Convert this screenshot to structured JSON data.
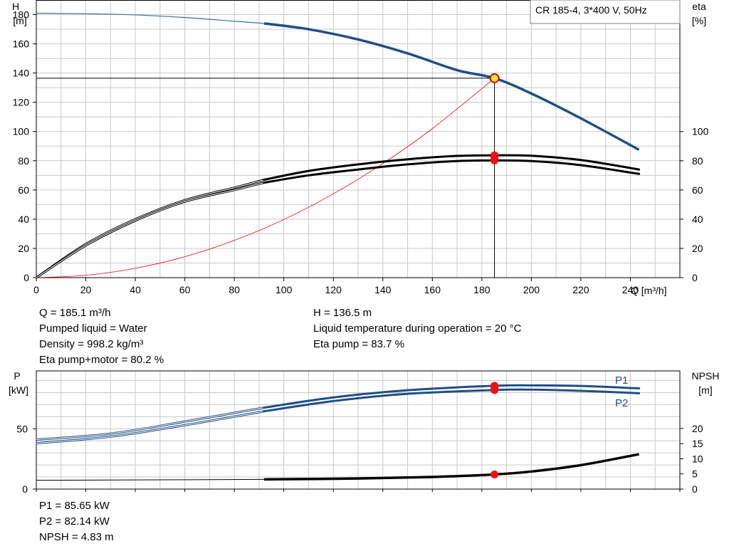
{
  "chart_data": [
    {
      "type": "line",
      "legend_box": "CR 185-4, 3*400 V, 50Hz",
      "x_axis": {
        "label": "Q [m³/h]",
        "range": [
          0,
          260
        ],
        "ticks": [
          0,
          20,
          40,
          60,
          80,
          100,
          120,
          140,
          160,
          180,
          200,
          220,
          240
        ]
      },
      "left_axis": {
        "label_line1": "H",
        "label_line2": "[m]",
        "range": [
          0,
          190
        ],
        "ticks": [
          0,
          20,
          40,
          60,
          80,
          100,
          120,
          140,
          160,
          180
        ]
      },
      "right_axis": {
        "label_line1": "eta",
        "label_line2": "[%]",
        "range": [
          0,
          190
        ],
        "ticks": [
          0,
          20,
          40,
          60,
          80,
          100
        ]
      },
      "grid": true,
      "duty_point": {
        "q": 185.1,
        "h": 136.5,
        "eta_pump": 83.7,
        "eta_pump_motor": 80.2
      },
      "series": [
        {
          "key": "H",
          "color": "#1f4e88",
          "x": [
            0,
            20,
            40,
            60,
            80,
            92,
            110,
            130,
            150,
            170,
            185.1,
            200,
            220,
            243.5
          ],
          "y": [
            181,
            180.6,
            179.8,
            178,
            175.5,
            174,
            170,
            163,
            153.5,
            142,
            136.5,
            126,
            109,
            87.5
          ],
          "solid_from": 92
        },
        {
          "key": "eta_pump",
          "color": "#000000",
          "x": [
            0,
            20,
            40,
            60,
            80,
            92,
            110,
            130,
            150,
            170,
            185.1,
            200,
            220,
            243.5
          ],
          "y": [
            0,
            23,
            40,
            53,
            61.5,
            67,
            73,
            77.5,
            81,
            83.3,
            83.7,
            83.4,
            80.5,
            74
          ],
          "solid_from": 92
        },
        {
          "key": "eta_pump_motor",
          "color": "#000000",
          "x": [
            0,
            20,
            40,
            60,
            80,
            92,
            110,
            130,
            150,
            170,
            185.1,
            200,
            220,
            243.5
          ],
          "y": [
            0,
            22,
            39,
            52,
            60,
            65,
            70,
            74,
            77.5,
            79.8,
            80.2,
            79.8,
            77,
            71
          ],
          "solid_from": 92
        },
        {
          "key": "system_curve",
          "color": "#ff0000",
          "x": [
            0,
            20,
            40,
            60,
            80,
            100,
            120,
            140,
            160,
            185.1
          ],
          "y": [
            0,
            1.6,
            6.4,
            14.3,
            25.5,
            39.8,
            57.4,
            78.1,
            102,
            136.5
          ]
        }
      ]
    },
    {
      "type": "line",
      "x_axis": {
        "range": [
          0,
          260
        ]
      },
      "left_axis": {
        "label_line1": "P",
        "label_line2": "[kW]",
        "range": [
          0,
          98
        ],
        "ticks": [
          0,
          50
        ]
      },
      "right_axis": {
        "label_line1": "NPSH",
        "label_line2": "[m]",
        "range": [
          0,
          39
        ],
        "ticks": [
          0,
          5,
          10,
          15,
          20
        ]
      },
      "grid": true,
      "duty_point": {
        "q": 185.1,
        "p1": 85.65,
        "p2": 82.14,
        "npsh": 4.83
      },
      "series": [
        {
          "name": "P1",
          "color": "#1f4e88",
          "x": [
            0,
            30,
            60,
            92,
            120,
            150,
            185.1,
            200,
            220,
            243.5
          ],
          "y": [
            41,
            46,
            56,
            67.5,
            76,
            82,
            85.65,
            86,
            85.5,
            83.5
          ],
          "solid_from": 92
        },
        {
          "name": "P2",
          "color": "#1f4e88",
          "x": [
            0,
            30,
            60,
            92,
            120,
            150,
            185.1,
            200,
            220,
            243.5
          ],
          "y": [
            38,
            43.5,
            53,
            64.5,
            73,
            79,
            82.14,
            82.5,
            81.5,
            79.5
          ],
          "solid_from": 92
        },
        {
          "key": "NPSH",
          "color": "#000000",
          "x": [
            0,
            50,
            92,
            130,
            160,
            185.1,
            200,
            220,
            243.5
          ],
          "y": [
            2.9,
            3.05,
            3.2,
            3.5,
            4.0,
            4.83,
            5.8,
            7.9,
            11.5
          ],
          "solid_from": 92
        }
      ]
    }
  ],
  "readout": {
    "q": "Q = 185.1 m³/h",
    "liquid": "Pumped liquid = Water",
    "density": "Density = 998.2 kg/m³",
    "eta_pump_motor": "Eta pump+motor = 80.2 %",
    "h": "H = 136.5 m",
    "temp": "Liquid temperature during operation = 20 °C",
    "eta_pump": "Eta pump = 83.7 %",
    "p1": "P1 = 85.65 kW",
    "p2": "P2 = 82.14 kW",
    "npsh": "NPSH = 4.83 m"
  }
}
